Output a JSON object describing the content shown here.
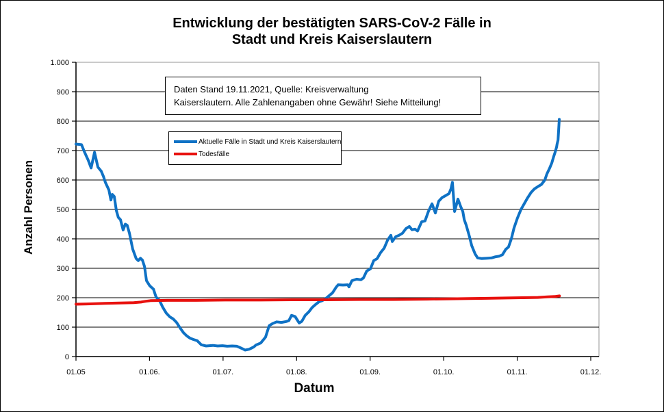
{
  "title": {
    "line1": "Entwicklung der bestätigten SARS-CoV-2 Fälle in",
    "line2": "Stadt und Kreis Kaiserslautern"
  },
  "annotation": {
    "line1": "Daten Stand 19.11.2021, Quelle: Kreisverwaltung",
    "line2": "Kaiserslautern. Alle Zahlenangaben ohne Gewähr! Siehe Mitteilung!"
  },
  "chart_data": {
    "type": "line",
    "title": "Entwicklung der bestätigten SARS-CoV-2 Fälle in Stadt und Kreis Kaiserslautern",
    "xlabel": "Datum",
    "ylabel": "Anzahl Personen",
    "ylim": [
      0,
      1000
    ],
    "y_tick_step": 100,
    "y_tick_labels": [
      "0",
      "100",
      "200",
      "300",
      "400",
      "500",
      "600",
      "700",
      "800",
      "900",
      "1.000"
    ],
    "x_tick_labels": [
      "01.05",
      "01.06.",
      "01.07.",
      "01.08.",
      "01.09.",
      "01.10.",
      "01.11.",
      "01.12."
    ],
    "x_axis_span_days": 214,
    "grid": true,
    "colors": {
      "grid": "#000000",
      "plot_border": "#a6a6a6",
      "axis": "#000000"
    },
    "legend": {
      "position": "inside-top-left"
    },
    "series": [
      {
        "name": "Aktuelle Fälle in Stadt und Kreis Kaiserslautern",
        "color": "#0f72c5",
        "points": [
          [
            0,
            722
          ],
          [
            2.3,
            720
          ],
          [
            3.4,
            698
          ],
          [
            5.1,
            667
          ],
          [
            6.3,
            641
          ],
          [
            7.7,
            694
          ],
          [
            9.1,
            644
          ],
          [
            10.5,
            630
          ],
          [
            11.4,
            612
          ],
          [
            12.2,
            592
          ],
          [
            13.7,
            566
          ],
          [
            14.5,
            532
          ],
          [
            15.1,
            551
          ],
          [
            15.9,
            544
          ],
          [
            16.8,
            496
          ],
          [
            17.6,
            473
          ],
          [
            18.5,
            465
          ],
          [
            19.6,
            430
          ],
          [
            20.5,
            450
          ],
          [
            21.3,
            446
          ],
          [
            22.2,
            420
          ],
          [
            23.6,
            365
          ],
          [
            25,
            333
          ],
          [
            25.9,
            326
          ],
          [
            26.8,
            334
          ],
          [
            27.6,
            328
          ],
          [
            28.5,
            306
          ],
          [
            29.3,
            258
          ],
          [
            30.7,
            240
          ],
          [
            32.2,
            229
          ],
          [
            33.3,
            202
          ],
          [
            34.7,
            191
          ],
          [
            36.1,
            167
          ],
          [
            37.6,
            147
          ],
          [
            39,
            135
          ],
          [
            40.4,
            128
          ],
          [
            41.8,
            116
          ],
          [
            43.3,
            97
          ],
          [
            44.7,
            81
          ],
          [
            46.1,
            70
          ],
          [
            47.5,
            62
          ],
          [
            48.9,
            58
          ],
          [
            50.4,
            54
          ],
          [
            52.1,
            40
          ],
          [
            54.1,
            36
          ],
          [
            56.9,
            38
          ],
          [
            58.9,
            36
          ],
          [
            60.9,
            37
          ],
          [
            62.9,
            35
          ],
          [
            64.9,
            36
          ],
          [
            66.9,
            35
          ],
          [
            68.9,
            28
          ],
          [
            70.3,
            22
          ],
          [
            72,
            25
          ],
          [
            74,
            33
          ],
          [
            74.8,
            39
          ],
          [
            76.8,
            46
          ],
          [
            78.8,
            66
          ],
          [
            80.3,
            105
          ],
          [
            81.7,
            112
          ],
          [
            83.4,
            118
          ],
          [
            85.4,
            116
          ],
          [
            87.4,
            119
          ],
          [
            88.5,
            122
          ],
          [
            89.6,
            140
          ],
          [
            91.1,
            136
          ],
          [
            92.8,
            114
          ],
          [
            93.9,
            120
          ],
          [
            95.3,
            140
          ],
          [
            96.8,
            152
          ],
          [
            98.2,
            167
          ],
          [
            99.6,
            177
          ],
          [
            101,
            186
          ],
          [
            102.4,
            190
          ],
          [
            103.6,
            196
          ],
          [
            104.7,
            203
          ],
          [
            106.7,
            217
          ],
          [
            108.1,
            235
          ],
          [
            109,
            244
          ],
          [
            111,
            243
          ],
          [
            113,
            244
          ],
          [
            113.5,
            237
          ],
          [
            114.7,
            258
          ],
          [
            116.7,
            263
          ],
          [
            118.4,
            261
          ],
          [
            119.5,
            267
          ],
          [
            120.9,
            291
          ],
          [
            122.4,
            298
          ],
          [
            123.8,
            326
          ],
          [
            125.2,
            333
          ],
          [
            126.6,
            353
          ],
          [
            128.1,
            368
          ],
          [
            129.5,
            395
          ],
          [
            130.9,
            412
          ],
          [
            131.5,
            391
          ],
          [
            132.9,
            407
          ],
          [
            134.3,
            412
          ],
          [
            135.7,
            419
          ],
          [
            137.2,
            435
          ],
          [
            138.6,
            442
          ],
          [
            139.7,
            431
          ],
          [
            140.9,
            433
          ],
          [
            142,
            427
          ],
          [
            143.7,
            458
          ],
          [
            145.1,
            461
          ],
          [
            146.5,
            493
          ],
          [
            148,
            519
          ],
          [
            149.4,
            488
          ],
          [
            150.8,
            528
          ],
          [
            152.2,
            540
          ],
          [
            153.7,
            547
          ],
          [
            155.1,
            554
          ],
          [
            155.9,
            570
          ],
          [
            156.5,
            592
          ],
          [
            157.4,
            493
          ],
          [
            158.8,
            535
          ],
          [
            159.9,
            510
          ],
          [
            160.8,
            493
          ],
          [
            161.4,
            465
          ],
          [
            162.2,
            447
          ],
          [
            163.6,
            407
          ],
          [
            164.5,
            377
          ],
          [
            165.9,
            349
          ],
          [
            167,
            335
          ],
          [
            168.7,
            333
          ],
          [
            170.7,
            334
          ],
          [
            172.7,
            335
          ],
          [
            174.4,
            339
          ],
          [
            175.9,
            341
          ],
          [
            177.3,
            346
          ],
          [
            178.7,
            365
          ],
          [
            179.8,
            372
          ],
          [
            181,
            400
          ],
          [
            182.1,
            437
          ],
          [
            183.5,
            470
          ],
          [
            185,
            500
          ],
          [
            186.4,
            520
          ],
          [
            187.8,
            540
          ],
          [
            189.2,
            558
          ],
          [
            190.6,
            570
          ],
          [
            192.1,
            578
          ],
          [
            193.5,
            585
          ],
          [
            194.9,
            600
          ],
          [
            195.8,
            621
          ],
          [
            196.9,
            640
          ],
          [
            197.8,
            658
          ],
          [
            198.6,
            680
          ],
          [
            199.2,
            695
          ],
          [
            199.8,
            712
          ],
          [
            200,
            722
          ],
          [
            200.4,
            735
          ],
          [
            200.6,
            762
          ],
          [
            200.9,
            806
          ]
        ]
      },
      {
        "name": "Todesfälle",
        "color": "#e8110e",
        "points": [
          [
            0,
            178
          ],
          [
            6,
            179
          ],
          [
            12,
            181
          ],
          [
            18,
            182
          ],
          [
            24,
            183
          ],
          [
            27,
            185
          ],
          [
            29,
            188
          ],
          [
            31,
            190
          ],
          [
            38,
            191
          ],
          [
            50,
            191
          ],
          [
            62,
            192
          ],
          [
            76,
            192
          ],
          [
            90,
            193
          ],
          [
            104,
            193
          ],
          [
            118,
            194
          ],
          [
            132,
            194
          ],
          [
            146,
            195
          ],
          [
            154,
            196
          ],
          [
            163,
            197
          ],
          [
            171,
            198
          ],
          [
            179,
            199
          ],
          [
            186,
            200
          ],
          [
            192,
            201
          ],
          [
            196,
            203
          ],
          [
            199,
            204
          ],
          [
            201,
            206
          ]
        ]
      }
    ]
  }
}
